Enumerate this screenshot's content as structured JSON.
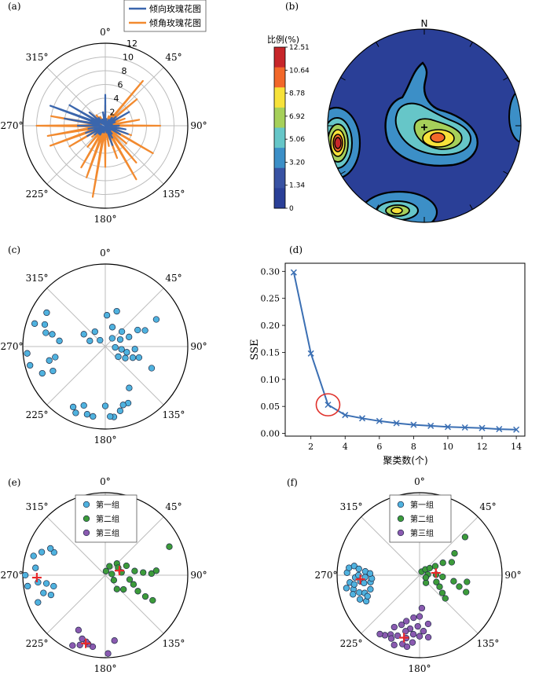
{
  "panels": {
    "a": "(a)",
    "b": "(b)",
    "c": "(c)",
    "d": "(d)",
    "e": "(e)",
    "f": "(f)"
  },
  "angle_labels": [
    "0°",
    "45°",
    "90°",
    "135°",
    "180°",
    "225°",
    "270°",
    "315°"
  ],
  "colors": {
    "dip_direction": "#3a66ad",
    "dip_angle": "#f28a2f",
    "points": "#4fb2df",
    "group1": "#4fb2df",
    "group2": "#3c9b3a",
    "group3": "#8a5ab0",
    "center": "#e8282a",
    "sse_line": "#3b6fb3",
    "elbow_circle": "#e0302a",
    "grid": "#bdbdbd"
  },
  "chart_data": [
    {
      "id": "a",
      "type": "rose",
      "rticks": [
        "2",
        "4",
        "6",
        "8",
        "10",
        "12"
      ],
      "rmax": 12,
      "legend": [
        "倾向玫瑰花图",
        "倾角玫瑰花图"
      ],
      "legend_position": "top-right",
      "series": [
        {
          "name": "倾向玫瑰花图",
          "r": [
            4.5,
            1,
            0.5,
            1,
            1.5,
            2,
            4,
            1.5,
            1,
            2,
            3,
            3.5,
            2.5,
            1,
            1.5,
            2,
            3,
            1,
            0.5,
            1,
            1,
            1.5,
            1.5,
            2,
            3,
            3,
            2.5,
            4,
            6,
            8.5,
            6,
            3,
            1.5,
            1,
            1,
            2
          ]
        },
        {
          "name": "倾角玫瑰花图",
          "r": [
            3,
            1,
            1.5,
            2,
            8.5,
            6,
            3,
            3,
            5,
            8,
            2.5,
            4,
            8,
            4,
            7,
            9,
            5,
            3,
            6,
            10.5,
            8,
            7,
            4,
            2.5,
            6,
            8.5,
            8.5,
            10,
            8,
            6,
            4,
            3,
            2,
            1.5,
            1,
            1
          ]
        }
      ]
    },
    {
      "id": "b",
      "type": "heatmap",
      "title": "比例(%)",
      "north_label": "N",
      "colorbar_ticks": [
        "12.51",
        "10.64",
        "8.78",
        "6.92",
        "5.06",
        "3.20",
        "1.34",
        "0"
      ],
      "colorbar_colors": [
        "#c7262a",
        "#f2682a",
        "#f7e23a",
        "#a6d05a",
        "#66c6c8",
        "#3c8fc7",
        "#3852a3",
        "#2a3f97"
      ]
    },
    {
      "id": "c",
      "type": "scatter",
      "points": [
        [
          0.38,
          3
        ],
        [
          0.25,
          20
        ],
        [
          0.45,
          18
        ],
        [
          0.13,
          40
        ],
        [
          0.27,
          48
        ],
        [
          0.2,
          65
        ],
        [
          0.31,
          68
        ],
        [
          0.44,
          63
        ],
        [
          0.52,
          68
        ],
        [
          0.7,
          62
        ],
        [
          0.12,
          95
        ],
        [
          0.2,
          100
        ],
        [
          0.27,
          105
        ],
        [
          0.36,
          95
        ],
        [
          0.36,
          112
        ],
        [
          0.43,
          108
        ],
        [
          0.28,
          120
        ],
        [
          0.2,
          128
        ],
        [
          0.62,
          115
        ],
        [
          0.58,
          150
        ],
        [
          0.74,
          158
        ],
        [
          0.74,
          163
        ],
        [
          0.8,
          167
        ],
        [
          0.86,
          173
        ],
        [
          0.85,
          176
        ],
        [
          0.72,
          180
        ],
        [
          0.86,
          190
        ],
        [
          0.85,
          195
        ],
        [
          0.76,
          200
        ],
        [
          0.88,
          204
        ],
        [
          0.83,
          208
        ],
        [
          0.7,
          245
        ],
        [
          0.83,
          247
        ],
        [
          0.7,
          256
        ],
        [
          0.62,
          258
        ],
        [
          0.94,
          256
        ],
        [
          0.95,
          265
        ],
        [
          0.9,
          288
        ],
        [
          0.56,
          277
        ],
        [
          0.74,
          283
        ],
        [
          0.66,
          283
        ],
        [
          0.78,
          290
        ],
        [
          0.82,
          300
        ],
        [
          0.2,
          290
        ],
        [
          0.3,
          300
        ],
        [
          0.1,
          320
        ],
        [
          0.22,
          325
        ]
      ]
    },
    {
      "id": "d",
      "type": "line",
      "xlabel": "聚类数(个)",
      "ylabel": "SSE",
      "xlim": [
        0.5,
        14.5
      ],
      "ylim": [
        -0.005,
        0.315
      ],
      "xticks": [
        "2",
        "4",
        "6",
        "8",
        "10",
        "12",
        "14"
      ],
      "yticks": [
        "0.00",
        "0.05",
        "0.10",
        "0.15",
        "0.20",
        "0.25",
        "0.30"
      ],
      "x": [
        1,
        2,
        3,
        4,
        5,
        6,
        7,
        8,
        9,
        10,
        11,
        12,
        13,
        14
      ],
      "y": [
        0.298,
        0.148,
        0.053,
        0.034,
        0.028,
        0.023,
        0.019,
        0.016,
        0.014,
        0.012,
        0.011,
        0.01,
        0.008,
        0.007
      ],
      "highlight_x": 3
    },
    {
      "id": "e",
      "type": "scatter",
      "legend": [
        "第一组",
        "第二组",
        "第三组"
      ],
      "legend_position": "top-center",
      "groups": [
        {
          "name": "第一组",
          "points": [
            [
              0.97,
              270
            ],
            [
              0.95,
              262
            ],
            [
              0.9,
              285
            ],
            [
              0.85,
              276
            ],
            [
              0.82,
              264
            ],
            [
              0.78,
              254
            ],
            [
              0.7,
              250
            ],
            [
              0.88,
              248
            ],
            [
              0.72,
              262
            ],
            [
              0.64,
              258
            ],
            [
              0.82,
              290
            ],
            [
              0.68,
              294
            ],
            [
              0.74,
              296
            ]
          ]
        },
        {
          "name": "第二组",
          "points": [
            [
              0.05,
              10
            ],
            [
              0.12,
              25
            ],
            [
              0.2,
              45
            ],
            [
              0.18,
              60
            ],
            [
              0.28,
              66
            ],
            [
              0.2,
              80
            ],
            [
              0.36,
              82
            ],
            [
              0.46,
              86
            ],
            [
              0.56,
              88
            ],
            [
              0.62,
              85
            ],
            [
              0.3,
              100
            ],
            [
              0.36,
              108
            ],
            [
              0.44,
              116
            ],
            [
              0.55,
              118
            ],
            [
              0.28,
              128
            ],
            [
              0.22,
              140
            ],
            [
              0.65,
              118
            ],
            [
              0.85,
              66
            ],
            [
              0.12,
              120
            ],
            [
              0.08,
              80
            ]
          ]
        },
        {
          "name": "第三组",
          "points": [
            [
              0.88,
              190
            ],
            [
              0.86,
              194
            ],
            [
              0.84,
              196
            ],
            [
              0.9,
              200
            ],
            [
              0.82,
              200
            ],
            [
              0.94,
              205
            ],
            [
              0.74,
              206
            ],
            [
              0.95,
              178
            ],
            [
              0.8,
              172
            ]
          ]
        }
      ],
      "centers": [
        [
          0.83,
          268
        ],
        [
          0.18,
          72
        ],
        [
          0.86,
          196
        ]
      ]
    },
    {
      "id": "f",
      "type": "scatter",
      "legend": [
        "第一组",
        "第二组",
        "第三组"
      ],
      "legend_position": "top-center",
      "groups": [
        {
          "name": "第一组",
          "points": [
            [
              0.88,
              272
            ],
            [
              0.85,
              264
            ],
            [
              0.82,
              258
            ],
            [
              0.8,
              262
            ],
            [
              0.78,
              268
            ],
            [
              0.74,
              270
            ],
            [
              0.72,
              264
            ],
            [
              0.68,
              262
            ],
            [
              0.66,
              268
            ],
            [
              0.6,
              262
            ],
            [
              0.58,
              266
            ],
            [
              0.86,
              276
            ],
            [
              0.8,
              278
            ],
            [
              0.74,
              276
            ],
            [
              0.66,
              274
            ],
            [
              0.6,
              272
            ],
            [
              0.9,
              260
            ],
            [
              0.84,
              254
            ],
            [
              0.76,
              254
            ],
            [
              0.7,
              252
            ],
            [
              0.78,
              248
            ],
            [
              0.72,
              244
            ],
            [
              0.68,
              248
            ],
            [
              0.62,
              254
            ]
          ]
        },
        {
          "name": "第二组",
          "points": [
            [
              0.05,
              30
            ],
            [
              0.1,
              45
            ],
            [
              0.15,
              55
            ],
            [
              0.22,
              60
            ],
            [
              0.32,
              62
            ],
            [
              0.42,
              68
            ],
            [
              0.5,
              58
            ],
            [
              0.72,
              50
            ],
            [
              0.1,
              85
            ],
            [
              0.2,
              88
            ],
            [
              0.28,
              94
            ],
            [
              0.42,
              100
            ],
            [
              0.5,
              106
            ],
            [
              0.6,
              110
            ],
            [
              0.22,
              112
            ],
            [
              0.28,
              120
            ],
            [
              0.35,
              128
            ],
            [
              0.42,
              132
            ],
            [
              0.12,
              140
            ],
            [
              0.58,
              98
            ],
            [
              0.08,
              110
            ]
          ]
        },
        {
          "name": "第三组",
          "points": [
            [
              0.4,
              176
            ],
            [
              0.5,
              180
            ],
            [
              0.52,
              188
            ],
            [
              0.62,
              182
            ],
            [
              0.66,
              190
            ],
            [
              0.7,
              194
            ],
            [
              0.72,
              186
            ],
            [
              0.74,
              180
            ],
            [
              0.78,
              200
            ],
            [
              0.8,
              206
            ],
            [
              0.84,
              210
            ],
            [
              0.86,
              214
            ],
            [
              0.84,
              204
            ],
            [
              0.78,
              192
            ],
            [
              0.82,
              186
            ],
            [
              0.86,
              194
            ],
            [
              0.76,
              172
            ],
            [
              0.68,
              176
            ],
            [
              0.6,
              170
            ],
            [
              0.9,
              200
            ],
            [
              0.88,
              190
            ],
            [
              0.7,
              206
            ],
            [
              0.64,
              200
            ],
            [
              0.58,
              196
            ]
          ]
        }
      ],
      "centers": [
        [
          0.72,
          266
        ],
        [
          0.2,
          82
        ],
        [
          0.78,
          194
        ]
      ]
    }
  ]
}
